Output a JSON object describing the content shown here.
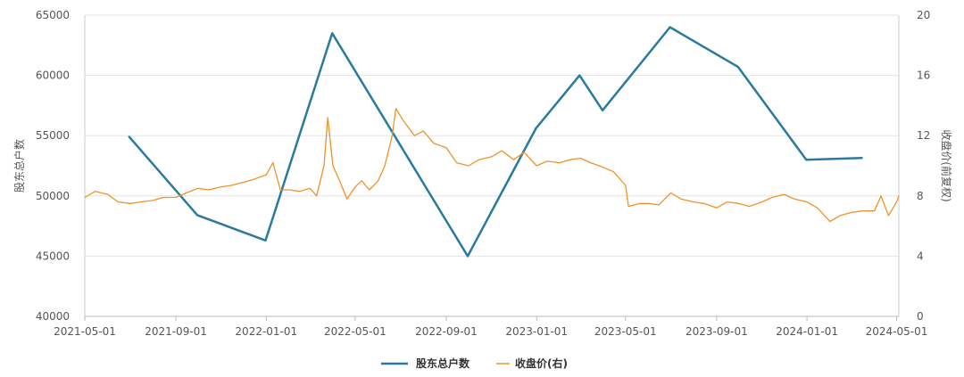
{
  "chart_data": {
    "type": "line",
    "x_ticks": [
      "2021-05-01",
      "2021-09-01",
      "2022-01-01",
      "2022-05-01",
      "2022-09-01",
      "2023-01-01",
      "2023-05-01",
      "2023-09-01",
      "2024-01-01",
      "2024-05-01"
    ],
    "x_range": [
      "2021-05-01",
      "2024-05-04"
    ],
    "y_left": {
      "label": "股东总户数",
      "range": [
        40000,
        65000
      ],
      "ticks": [
        40000,
        45000,
        50000,
        55000,
        60000,
        65000
      ]
    },
    "y_right": {
      "label": "收盘价(前复权)",
      "range": [
        0,
        20
      ],
      "ticks": [
        0,
        4,
        8,
        12,
        16,
        20
      ]
    },
    "grid": true,
    "legend_position": "bottom-center",
    "series": [
      {
        "name": "股东总户数",
        "axis": "left",
        "color": "#2a7a9e",
        "points": [
          [
            "2021-06-30",
            54900
          ],
          [
            "2021-09-30",
            48400
          ],
          [
            "2021-12-31",
            46300
          ],
          [
            "2022-03-31",
            63500
          ],
          [
            "2022-09-30",
            45000
          ],
          [
            "2022-12-31",
            55600
          ],
          [
            "2023-02-28",
            60000
          ],
          [
            "2023-03-31",
            57100
          ],
          [
            "2023-06-30",
            64000
          ],
          [
            "2023-09-30",
            60700
          ],
          [
            "2023-12-31",
            53000
          ],
          [
            "2024-03-15",
            53150
          ]
        ]
      },
      {
        "name": "收盘价(右)",
        "axis": "right",
        "color": "#f0922a",
        "points": [
          [
            "2021-05-01",
            7.9
          ],
          [
            "2021-05-15",
            8.3
          ],
          [
            "2021-06-01",
            8.1
          ],
          [
            "2021-06-15",
            7.6
          ],
          [
            "2021-07-01",
            7.5
          ],
          [
            "2021-07-15",
            7.6
          ],
          [
            "2021-08-01",
            7.7
          ],
          [
            "2021-08-15",
            7.9
          ],
          [
            "2021-09-01",
            7.9
          ],
          [
            "2021-09-15",
            8.2
          ],
          [
            "2021-10-01",
            8.5
          ],
          [
            "2021-10-15",
            8.4
          ],
          [
            "2021-11-01",
            8.6
          ],
          [
            "2021-11-15",
            8.7
          ],
          [
            "2021-12-01",
            8.9
          ],
          [
            "2021-12-15",
            9.1
          ],
          [
            "2022-01-01",
            9.4
          ],
          [
            "2022-01-10",
            10.2
          ],
          [
            "2022-01-20",
            8.4
          ],
          [
            "2022-02-01",
            8.4
          ],
          [
            "2022-02-15",
            8.3
          ],
          [
            "2022-03-01",
            8.5
          ],
          [
            "2022-03-10",
            8.0
          ],
          [
            "2022-03-20",
            10.0
          ],
          [
            "2022-03-25",
            13.2
          ],
          [
            "2022-04-01",
            10.0
          ],
          [
            "2022-04-10",
            9.0
          ],
          [
            "2022-04-20",
            7.8
          ],
          [
            "2022-05-01",
            8.6
          ],
          [
            "2022-05-10",
            9.0
          ],
          [
            "2022-05-20",
            8.4
          ],
          [
            "2022-06-01",
            9.0
          ],
          [
            "2022-06-10",
            10.0
          ],
          [
            "2022-06-20",
            12.0
          ],
          [
            "2022-06-25",
            13.8
          ],
          [
            "2022-07-05",
            13.0
          ],
          [
            "2022-07-20",
            12.0
          ],
          [
            "2022-08-01",
            12.3
          ],
          [
            "2022-08-15",
            11.5
          ],
          [
            "2022-09-01",
            11.2
          ],
          [
            "2022-09-15",
            10.2
          ],
          [
            "2022-10-01",
            10.0
          ],
          [
            "2022-10-15",
            10.4
          ],
          [
            "2022-11-01",
            10.6
          ],
          [
            "2022-11-15",
            11.0
          ],
          [
            "2022-12-01",
            10.4
          ],
          [
            "2022-12-15",
            10.9
          ],
          [
            "2023-01-01",
            10.0
          ],
          [
            "2023-01-15",
            10.3
          ],
          [
            "2023-02-01",
            10.2
          ],
          [
            "2023-02-15",
            10.4
          ],
          [
            "2023-03-01",
            10.5
          ],
          [
            "2023-03-15",
            10.2
          ],
          [
            "2023-04-01",
            9.9
          ],
          [
            "2023-04-15",
            9.6
          ],
          [
            "2023-05-01",
            8.7
          ],
          [
            "2023-05-05",
            7.3
          ],
          [
            "2023-05-20",
            7.5
          ],
          [
            "2023-06-01",
            7.5
          ],
          [
            "2023-06-15",
            7.4
          ],
          [
            "2023-07-01",
            8.2
          ],
          [
            "2023-07-15",
            7.8
          ],
          [
            "2023-08-01",
            7.6
          ],
          [
            "2023-08-15",
            7.5
          ],
          [
            "2023-09-01",
            7.2
          ],
          [
            "2023-09-15",
            7.6
          ],
          [
            "2023-10-01",
            7.5
          ],
          [
            "2023-10-15",
            7.3
          ],
          [
            "2023-11-01",
            7.6
          ],
          [
            "2023-11-15",
            7.9
          ],
          [
            "2023-12-01",
            8.1
          ],
          [
            "2023-12-15",
            7.8
          ],
          [
            "2024-01-01",
            7.6
          ],
          [
            "2024-01-15",
            7.2
          ],
          [
            "2024-02-01",
            6.3
          ],
          [
            "2024-02-15",
            6.7
          ],
          [
            "2024-03-01",
            6.9
          ],
          [
            "2024-03-15",
            7.0
          ],
          [
            "2024-04-01",
            7.0
          ],
          [
            "2024-04-10",
            8.0
          ],
          [
            "2024-04-20",
            6.7
          ],
          [
            "2024-05-01",
            7.6
          ],
          [
            "2024-05-04",
            8.0
          ]
        ]
      }
    ]
  }
}
